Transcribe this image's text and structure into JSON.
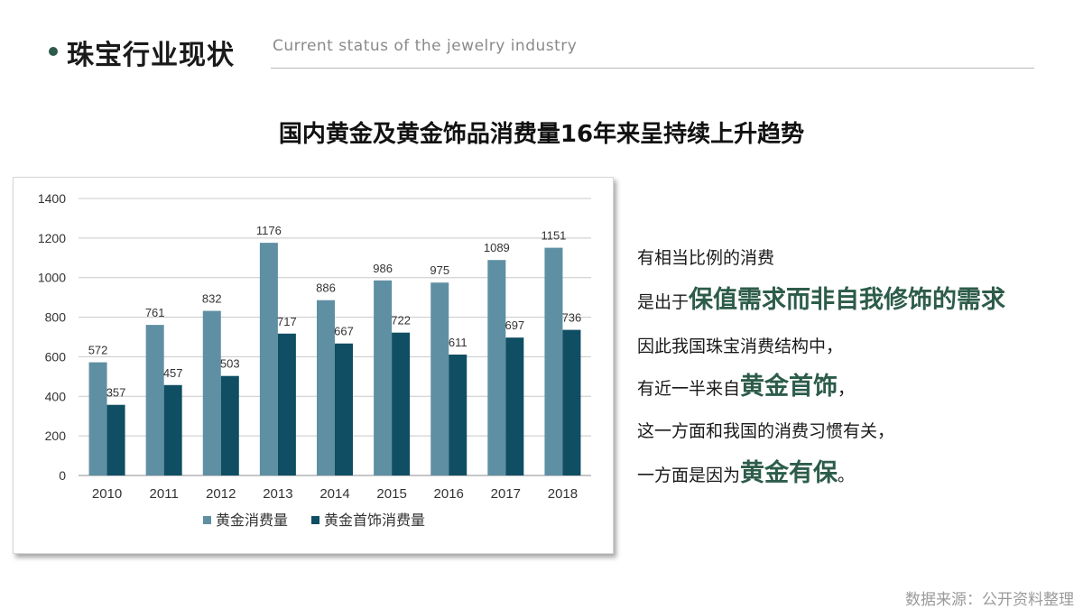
{
  "header": {
    "title": "珠宝行业现状",
    "subtitle": "Current status of the jewelry industry"
  },
  "colors": {
    "series1": "#5f8fa3",
    "series2": "#0f4e63",
    "accent_text": "#2d5c4a"
  },
  "chart_data": {
    "type": "bar",
    "title": "国内黄金及黄金饰品消费量16年来呈持续上升趋势",
    "categories": [
      "2010",
      "2011",
      "2012",
      "2013",
      "2014",
      "2015",
      "2016",
      "2017",
      "2018"
    ],
    "series": [
      {
        "name": "黄金消费量",
        "values": [
          572,
          761,
          832,
          1176,
          886,
          986,
          975,
          1089,
          1151
        ]
      },
      {
        "name": "黄金首饰消费量",
        "values": [
          357,
          457,
          503,
          717,
          667,
          722,
          611,
          697,
          736
        ]
      }
    ],
    "yticks": [
      "0",
      "200",
      "400",
      "600",
      "800",
      "1000",
      "1200",
      "1400"
    ],
    "ylim": [
      0,
      1400
    ],
    "xlabel": "",
    "ylabel": "",
    "grid": true,
    "legend": "bottom"
  },
  "text": {
    "l1": "有相当比例的消费",
    "l2_pre": "是出于",
    "l2_em": "保值需求而非自我修饰的需求",
    "l3": "因此我国珠宝消费结构中，",
    "l4_pre": "有近一半来自",
    "l4_em": "黄金首饰",
    "l4_post": "，",
    "l5": "这一方面和我国的消费习惯有关，",
    "l6_pre": "一方面是因为",
    "l6_em": "黄金有保",
    "l6_post": "。"
  },
  "source": "数据来源：公开资料整理"
}
